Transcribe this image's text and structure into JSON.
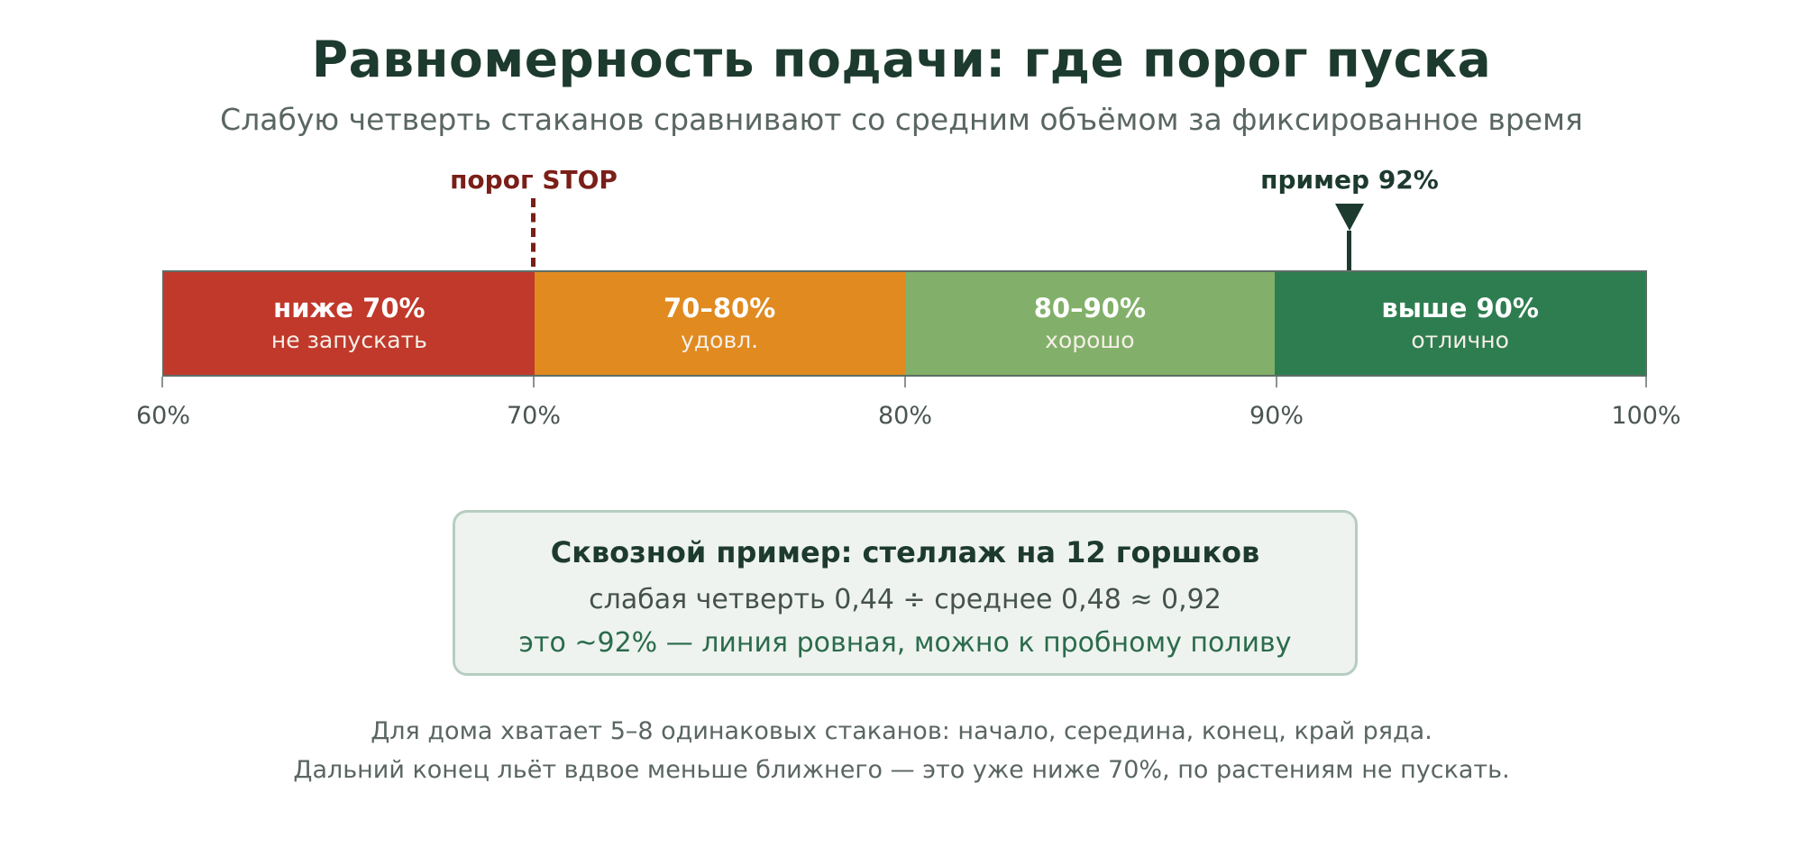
{
  "title": "Равномерность подачи: где порог пуска",
  "subtitle": "Слабую четверть стаканов сравнивают со средним объёмом за фиксированное время",
  "markers": {
    "stop": {
      "label": "порог STOP",
      "value": 70
    },
    "example": {
      "label": "пример 92%",
      "value": 92
    }
  },
  "scale": {
    "min": 60,
    "max": 100,
    "ticks": [
      "60%",
      "70%",
      "80%",
      "90%",
      "100%"
    ],
    "segments": [
      {
        "title": "ниже 70%",
        "subtitle": "не запускать",
        "from": 60,
        "to": 70,
        "color": "#c0392b"
      },
      {
        "title": "70–80%",
        "subtitle": "удовл.",
        "from": 70,
        "to": 80,
        "color": "#e08a20"
      },
      {
        "title": "80–90%",
        "subtitle": "хорошо",
        "from": 80,
        "to": 90,
        "color": "#82b06a"
      },
      {
        "title": "выше 90%",
        "subtitle": "отлично",
        "from": 90,
        "to": 100,
        "color": "#2e7d50"
      }
    ]
  },
  "example_box": {
    "title": "Сквозной пример: стеллаж на 12 горшков",
    "formula": "слабая четверть 0,44 ÷ среднее 0,48 ≈ 0,92",
    "conclusion": "это ~92% — линия ровная, можно к пробному поливу"
  },
  "footnotes": [
    "Для дома хватает 5–8 одинаковых стаканов: начало, середина, конец, край ряда.",
    "Дальний конец льёт вдвое меньше ближнего — это уже ниже 70%, по растениям не пускать."
  ]
}
